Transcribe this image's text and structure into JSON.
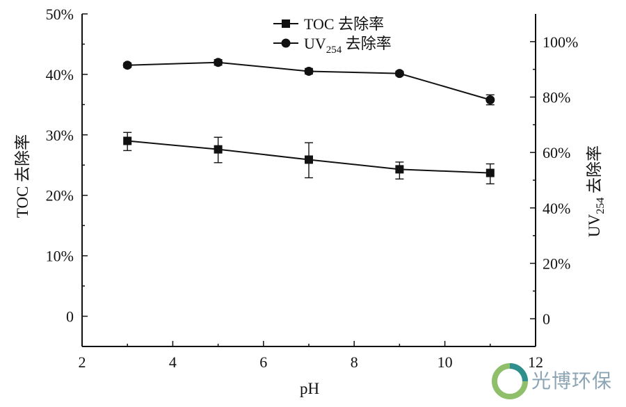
{
  "chart_data": {
    "type": "line",
    "xlabel": "pH",
    "x_ticks": [
      "2",
      "4",
      "6",
      "8",
      "10",
      "12"
    ],
    "xlim": [
      2,
      12
    ],
    "y_left": {
      "label_main": "TOC 去除率",
      "ylim": [
        -0.05,
        0.5
      ],
      "tick_values": [
        0,
        0.1,
        0.2,
        0.3,
        0.4,
        0.5
      ],
      "tick_labels": [
        "0",
        "10%",
        "20%",
        "30%",
        "40%",
        "50%"
      ]
    },
    "y_right": {
      "label_main": "UV",
      "label_sub": "254",
      "label_suffix": " 去除率",
      "ylim": [
        -0.1,
        1.1
      ],
      "tick_values": [
        0,
        0.2,
        0.4,
        0.6,
        0.8,
        1.0
      ],
      "tick_labels": [
        "0",
        "20%",
        "40%",
        "60%",
        "80%",
        "100%"
      ]
    },
    "series": [
      {
        "name": "TOC 去除率",
        "axis": "left",
        "marker": "square",
        "x": [
          3,
          5,
          7,
          9,
          11
        ],
        "y": [
          0.29,
          0.276,
          0.259,
          0.243,
          0.237
        ],
        "err_low": [
          0.016,
          0.022,
          0.03,
          0.016,
          0.018
        ],
        "err_high": [
          0.014,
          0.02,
          0.028,
          0.012,
          0.015
        ]
      },
      {
        "name": "UV254 去除率",
        "legend_main": "UV",
        "legend_sub": "254",
        "legend_suffix": " 去除率",
        "axis": "right",
        "marker": "circle",
        "x": [
          3,
          5,
          7,
          9,
          11
        ],
        "y": [
          0.915,
          0.925,
          0.893,
          0.885,
          0.79
        ],
        "err_low": [
          0.008,
          0.01,
          0.01,
          0.008,
          0.018
        ],
        "err_high": [
          0.008,
          0.01,
          0.01,
          0.008,
          0.018
        ]
      }
    ],
    "legend_position": "top-center",
    "grid": false
  },
  "watermark": {
    "text": "光博环保"
  }
}
